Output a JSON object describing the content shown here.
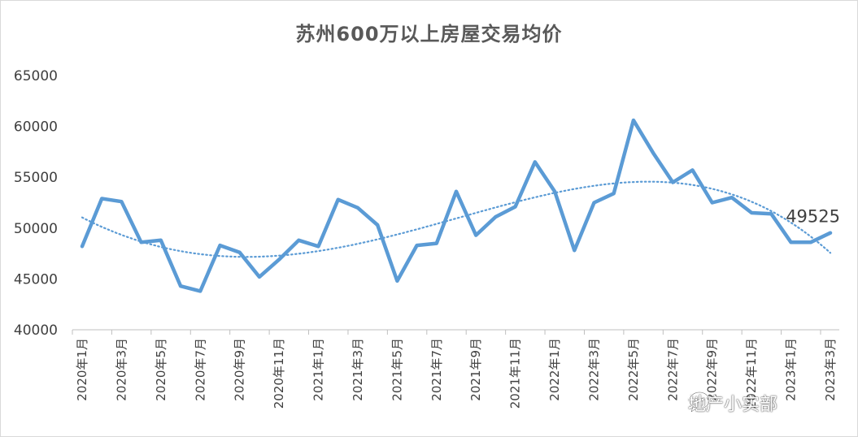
{
  "chart_data": {
    "type": "line",
    "title": "苏州600万以上房屋交易均价",
    "xlabel": "",
    "ylabel": "",
    "ylim": [
      40000,
      65000
    ],
    "yticks": [
      40000,
      45000,
      50000,
      55000,
      60000,
      65000
    ],
    "x": [
      "2020年1月",
      "2020年2月",
      "2020年3月",
      "2020年4月",
      "2020年5月",
      "2020年6月",
      "2020年7月",
      "2020年8月",
      "2020年9月",
      "2020年10月",
      "2020年11月",
      "2020年12月",
      "2021年1月",
      "2021年2月",
      "2021年3月",
      "2021年4月",
      "2021年5月",
      "2021年6月",
      "2021年7月",
      "2021年8月",
      "2021年9月",
      "2021年10月",
      "2021年11月",
      "2021年12月",
      "2022年1月",
      "2022年2月",
      "2022年3月",
      "2022年4月",
      "2022年5月",
      "2022年6月",
      "2022年7月",
      "2022年8月",
      "2022年9月",
      "2022年10月",
      "2022年11月",
      "2022年12月",
      "2023年1月",
      "2023年2月",
      "2023年3月"
    ],
    "xtick_labels": [
      "2020年1月",
      "2020年3月",
      "2020年5月",
      "2020年7月",
      "2020年9月",
      "2020年11月",
      "2021年1月",
      "2021年3月",
      "2021年5月",
      "2021年7月",
      "2021年9月",
      "2021年11月",
      "2022年1月",
      "2022年3月",
      "2022年5月",
      "2022年7月",
      "2022年9月",
      "2022年11月",
      "2023年1月",
      "2023年3月"
    ],
    "series": [
      {
        "values": [
          48200,
          52900,
          52600,
          48600,
          48800,
          44300,
          43800,
          48300,
          47600,
          45200,
          46900,
          48800,
          48200,
          52800,
          52000,
          50300,
          44800,
          48300,
          48500,
          53600,
          49300,
          51100,
          52100,
          56500,
          53600,
          47800,
          52500,
          53400,
          60600,
          57400,
          54500,
          55700,
          52500,
          53000,
          51500,
          51400,
          48600,
          48600,
          49525
        ],
        "color": "#5b9bd5",
        "trendline": {
          "type": "polynomial",
          "style": "dotted",
          "color": "#5b9bd5"
        }
      }
    ],
    "data_labels": [
      {
        "index": 38,
        "text": "49525"
      }
    ],
    "grid": false,
    "legend": "none"
  },
  "watermark": {
    "text": "地产小实部",
    "icon": "wechat-official-account-icon"
  }
}
